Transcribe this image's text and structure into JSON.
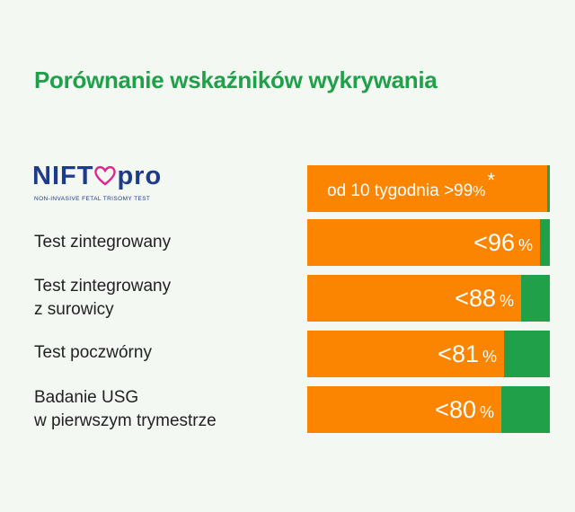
{
  "title": "Porównanie wskaźników wykrywania",
  "logo": {
    "name_left": "NIFT",
    "name_right": "pro",
    "tagline": "NON-INVASIVE FETAL TRISOMY TEST"
  },
  "colors": {
    "orange": "#fb8500",
    "green": "#1fa049",
    "title": "#1fa049"
  },
  "chart_data": {
    "type": "bar",
    "orientation": "horizontal",
    "title": "Porównanie wskaźników wykrywania",
    "xlim": [
      0,
      100
    ],
    "categories": [
      "NIFTY pro",
      "Test zintegrowany",
      "Test zintegrowany z surowicy",
      "Test poczwórny",
      "Badanie USG w pierwszym trymestrze"
    ],
    "values": [
      99,
      96,
      88,
      81,
      80
    ],
    "first_label": {
      "text": "od 10 tygodnia >99",
      "unit": "%",
      "note": "*"
    },
    "rows": [
      {
        "label_lines": [
          "Test zintegrowany"
        ],
        "value": 96,
        "value_text": "<96",
        "unit": "%"
      },
      {
        "label_lines": [
          "Test zintegrowany",
          "z surowicy"
        ],
        "value": 88,
        "value_text": "<88",
        "unit": "%"
      },
      {
        "label_lines": [
          "Test poczwórny"
        ],
        "value": 81,
        "value_text": "<81",
        "unit": "%"
      },
      {
        "label_lines": [
          "Badanie USG",
          "w pierwszym trymestrze"
        ],
        "value": 80,
        "value_text": "<80",
        "unit": "%"
      }
    ]
  }
}
